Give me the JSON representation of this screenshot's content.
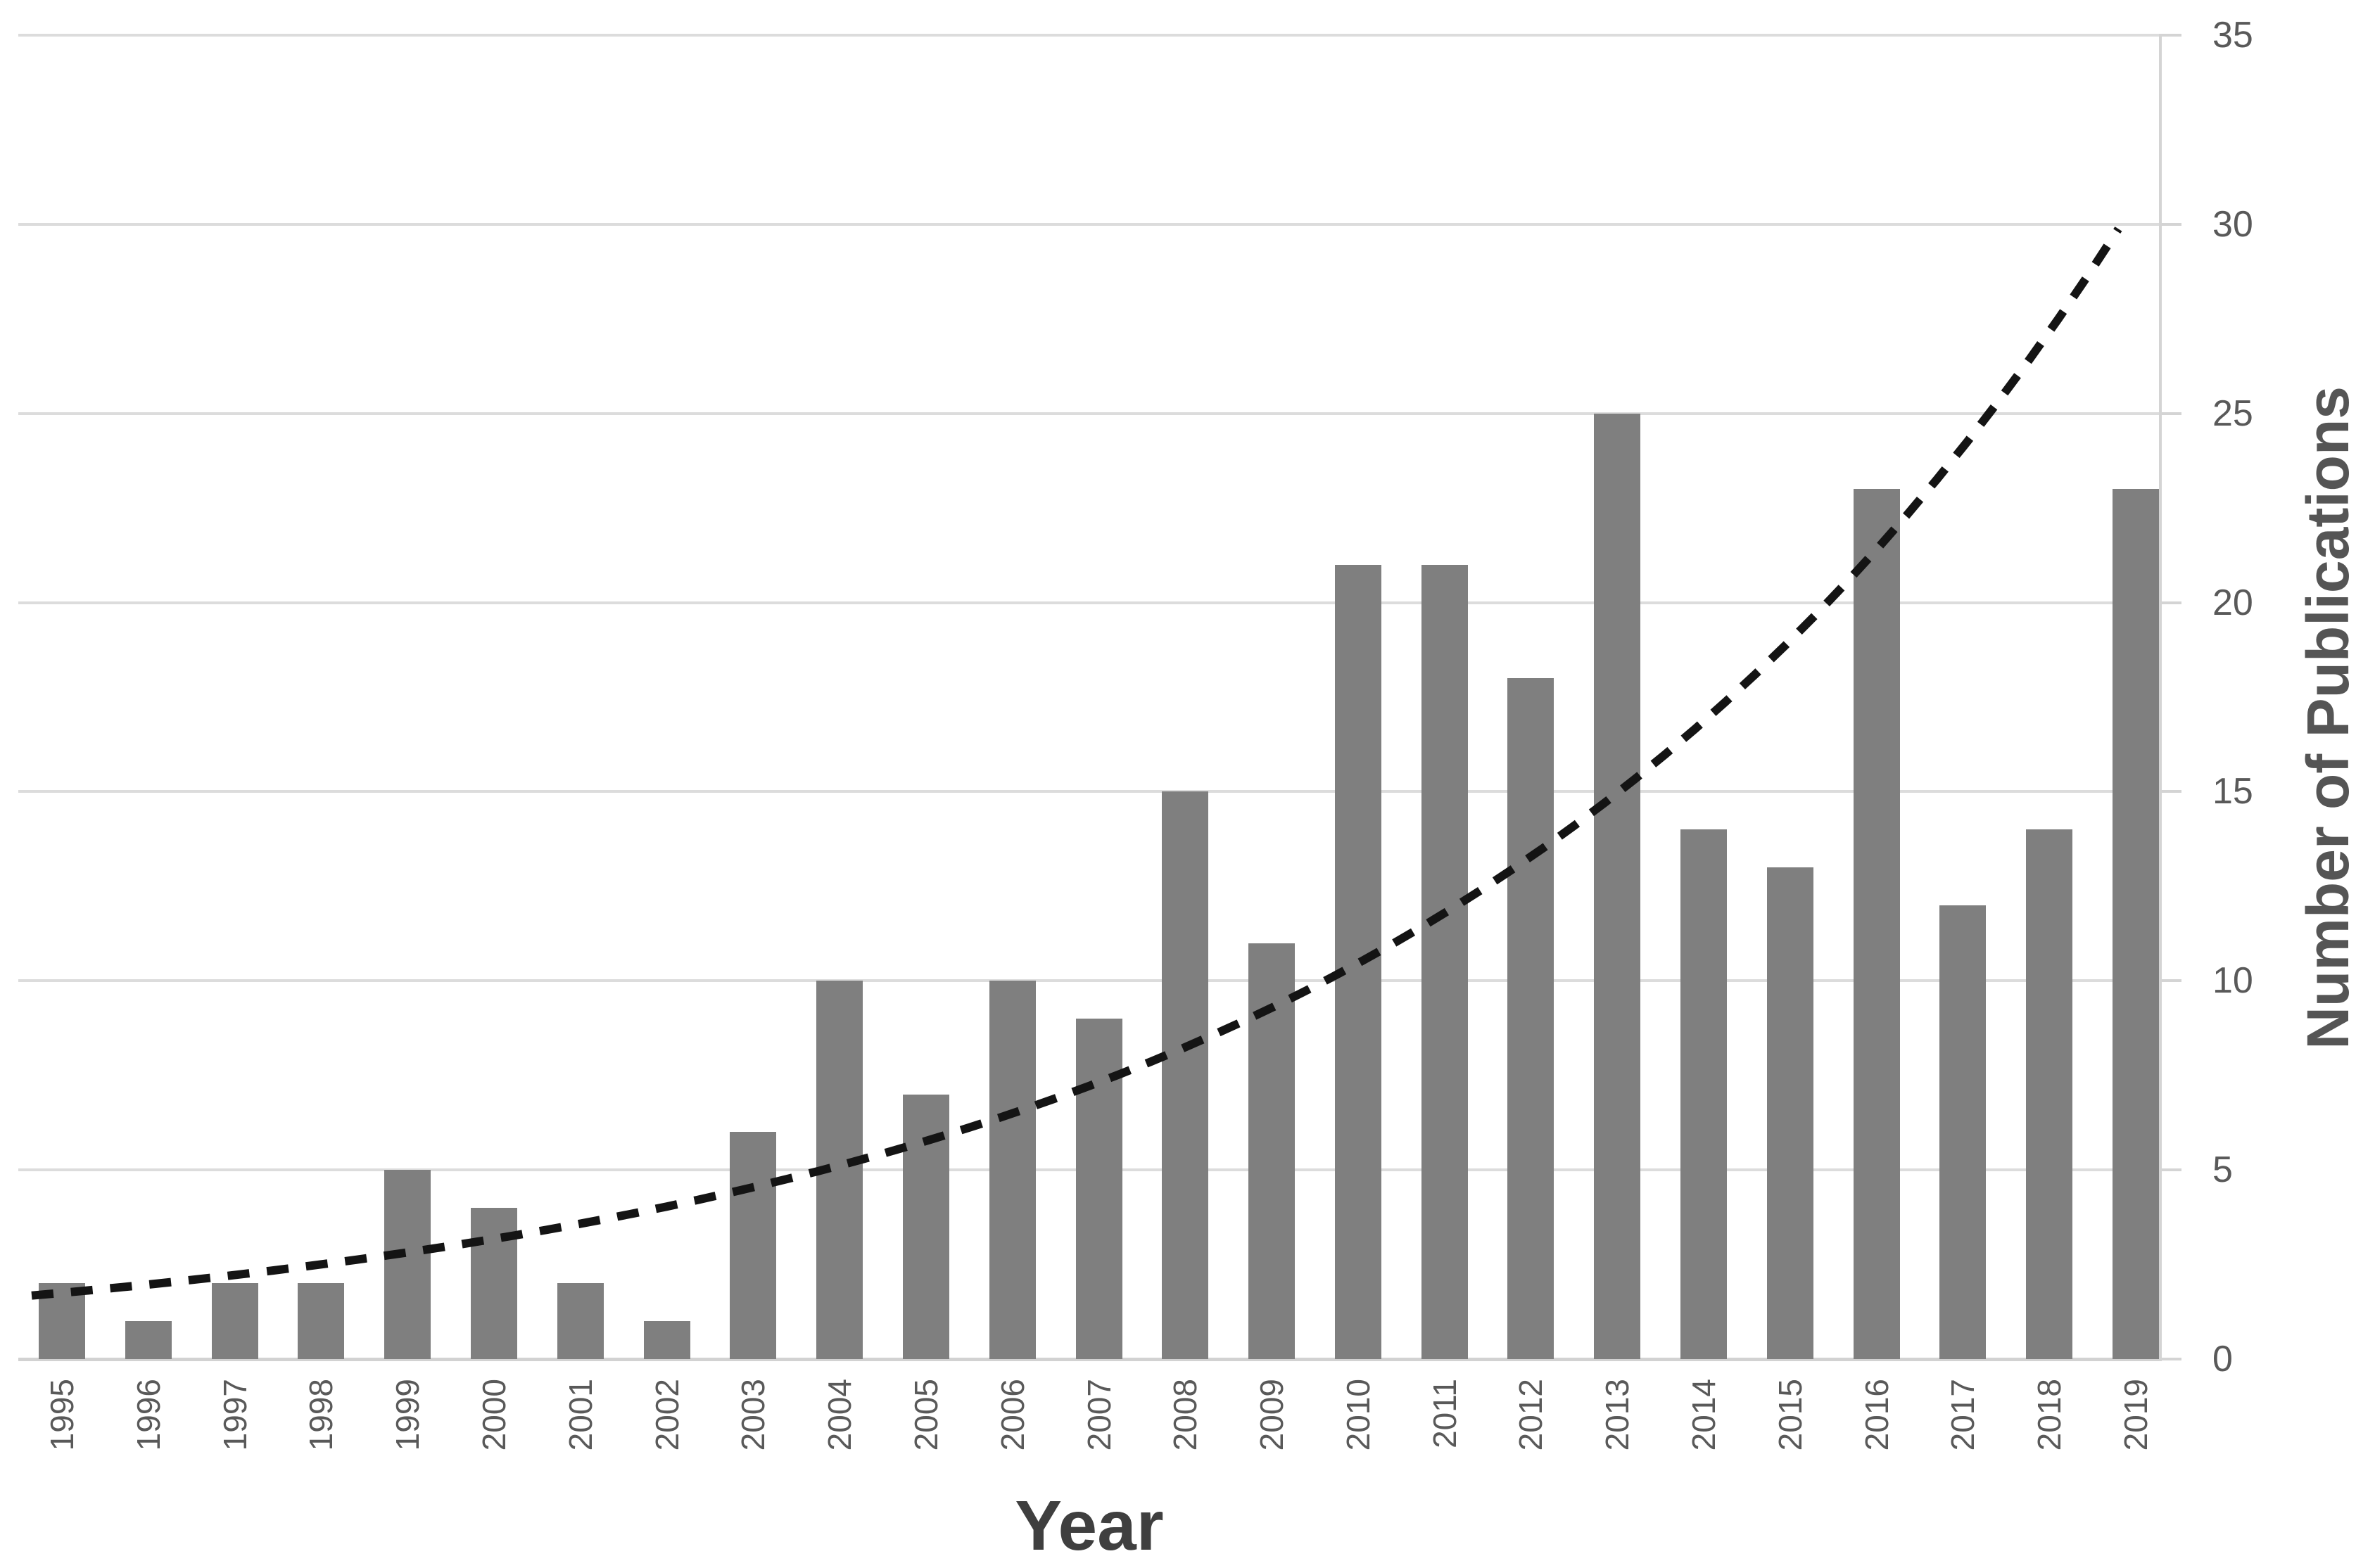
{
  "chart_data": {
    "type": "bar",
    "title": "",
    "categories": [
      "1995",
      "1996",
      "1997",
      "1998",
      "1999",
      "2000",
      "2001",
      "2002",
      "2003",
      "2004",
      "2005",
      "2006",
      "2007",
      "2008",
      "2009",
      "2010",
      "2011",
      "2012",
      "2013",
      "2014",
      "2015",
      "2016",
      "2017",
      "2018",
      "2019"
    ],
    "values": [
      2,
      1,
      2,
      2,
      5,
      4,
      2,
      1,
      6,
      10,
      7,
      10,
      9,
      15,
      11,
      21,
      21,
      18,
      25,
      14,
      13,
      23,
      12,
      14,
      23
    ],
    "xlabel": "Year",
    "ylabel": "Number of Publications",
    "ylim": [
      0,
      35
    ],
    "yticks": [
      0,
      5,
      10,
      15,
      20,
      25,
      30,
      35
    ],
    "y_axis_side": "right",
    "grid": "horizontal",
    "legend": "none",
    "bar_color": "#7f7f7f",
    "gridline_color": "#dcdcdc",
    "axis_line_color": "#d2d2d2",
    "tick_label_color": "#595959",
    "axis_title_color": "#3f3f3f",
    "trendline": {
      "style": "dashed",
      "color": "#141414",
      "shape": "exponential",
      "start": {
        "year": 1995,
        "value": 1.75
      },
      "end": {
        "year": 2019,
        "value": 30.6
      }
    }
  }
}
